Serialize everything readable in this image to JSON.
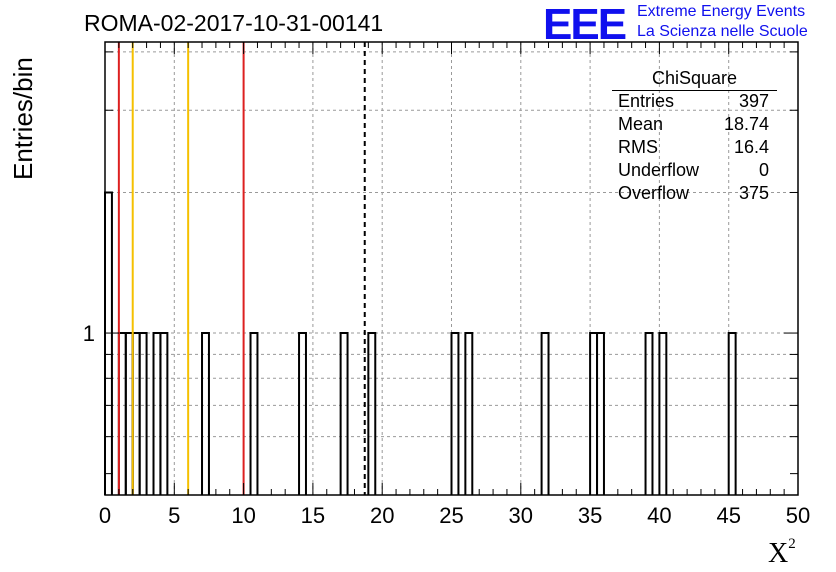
{
  "header": {
    "title": "ROMA-02-2017-10-31-00141"
  },
  "logo": {
    "mark": "EEE",
    "line1": "Extreme Energy Events",
    "line2": "La Scienza nelle Scuole",
    "color": "#1010ee"
  },
  "stats": {
    "title": "ChiSquare",
    "rows": [
      {
        "label": "Entries",
        "value": "397"
      },
      {
        "label": "Mean",
        "value": "18.74"
      },
      {
        "label": "RMS",
        "value": "16.4"
      },
      {
        "label": "Underflow",
        "value": "0"
      },
      {
        "label": "Overflow",
        "value": "375"
      }
    ]
  },
  "chart_data": {
    "type": "bar",
    "title": "ROMA-02-2017-10-31-00141",
    "xlabel": "X",
    "xlabel_superscript": "2",
    "ylabel": "Entries/bin",
    "xlim": [
      0,
      50
    ],
    "ylim_log": [
      0.45,
      4.2
    ],
    "log_y": true,
    "grid": true,
    "xticks": [
      "0",
      "5",
      "10",
      "15",
      "20",
      "25",
      "30",
      "35",
      "40",
      "45",
      "50"
    ],
    "yticks": [
      "1"
    ],
    "bin_width": 0.5,
    "bins": [
      {
        "x": 0.0,
        "y": 2
      },
      {
        "x": 1.0,
        "y": 1
      },
      {
        "x": 1.5,
        "y": 1
      },
      {
        "x": 2.0,
        "y": 1
      },
      {
        "x": 2.5,
        "y": 1
      },
      {
        "x": 3.5,
        "y": 1
      },
      {
        "x": 4.0,
        "y": 1
      },
      {
        "x": 7.0,
        "y": 1
      },
      {
        "x": 10.5,
        "y": 1
      },
      {
        "x": 14.0,
        "y": 1
      },
      {
        "x": 17.0,
        "y": 1
      },
      {
        "x": 19.0,
        "y": 1
      },
      {
        "x": 25.0,
        "y": 1
      },
      {
        "x": 26.0,
        "y": 1
      },
      {
        "x": 31.5,
        "y": 1
      },
      {
        "x": 35.0,
        "y": 1
      },
      {
        "x": 35.5,
        "y": 1
      },
      {
        "x": 39.0,
        "y": 1
      },
      {
        "x": 40.0,
        "y": 1
      },
      {
        "x": 45.0,
        "y": 1
      }
    ],
    "reference_lines": [
      {
        "x": 1.0,
        "color": "#dd2020",
        "style": "solid"
      },
      {
        "x": 2.0,
        "color": "#f5c000",
        "style": "solid"
      },
      {
        "x": 6.0,
        "color": "#f5c000",
        "style": "solid"
      },
      {
        "x": 10.0,
        "color": "#dd2020",
        "style": "solid"
      },
      {
        "x": 18.74,
        "color": "#000000",
        "style": "dashed"
      }
    ]
  }
}
